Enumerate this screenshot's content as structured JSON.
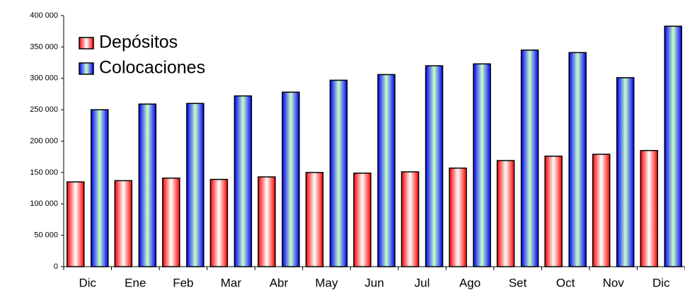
{
  "chart_data": {
    "type": "bar",
    "categories": [
      "Dic",
      "Ene",
      "Feb",
      "Mar",
      "Abr",
      "May",
      "Jun",
      "Jul",
      "Ago",
      "Set",
      "Oct",
      "Nov",
      "Dic"
    ],
    "series": [
      {
        "name": "Depósitos",
        "color": "#ff0000",
        "values": [
          135000,
          137000,
          141000,
          139000,
          143000,
          150000,
          149000,
          151000,
          157000,
          169000,
          176000,
          179000,
          185000
        ]
      },
      {
        "name": "Colocaciones",
        "color": "#0000ff",
        "values": [
          250000,
          259000,
          260000,
          272000,
          278000,
          297000,
          306000,
          320000,
          323000,
          345000,
          341000,
          301000,
          383000
        ]
      }
    ],
    "ylim": [
      0,
      400000
    ],
    "yticks": [
      0,
      {
        "value": 50000,
        "label": "50 000"
      },
      {
        "value": 100000,
        "label": "100 000"
      },
      {
        "value": 150000,
        "label": "150 000"
      },
      {
        "value": 200000,
        "label": "200 000"
      },
      {
        "value": 250000,
        "label": "250 000"
      },
      {
        "value": 300000,
        "label": "300 000"
      },
      {
        "value": 350000,
        "label": "350 000"
      },
      {
        "value": 400000,
        "label": "400 000"
      }
    ],
    "legend": "top-left",
    "grid": false
  }
}
